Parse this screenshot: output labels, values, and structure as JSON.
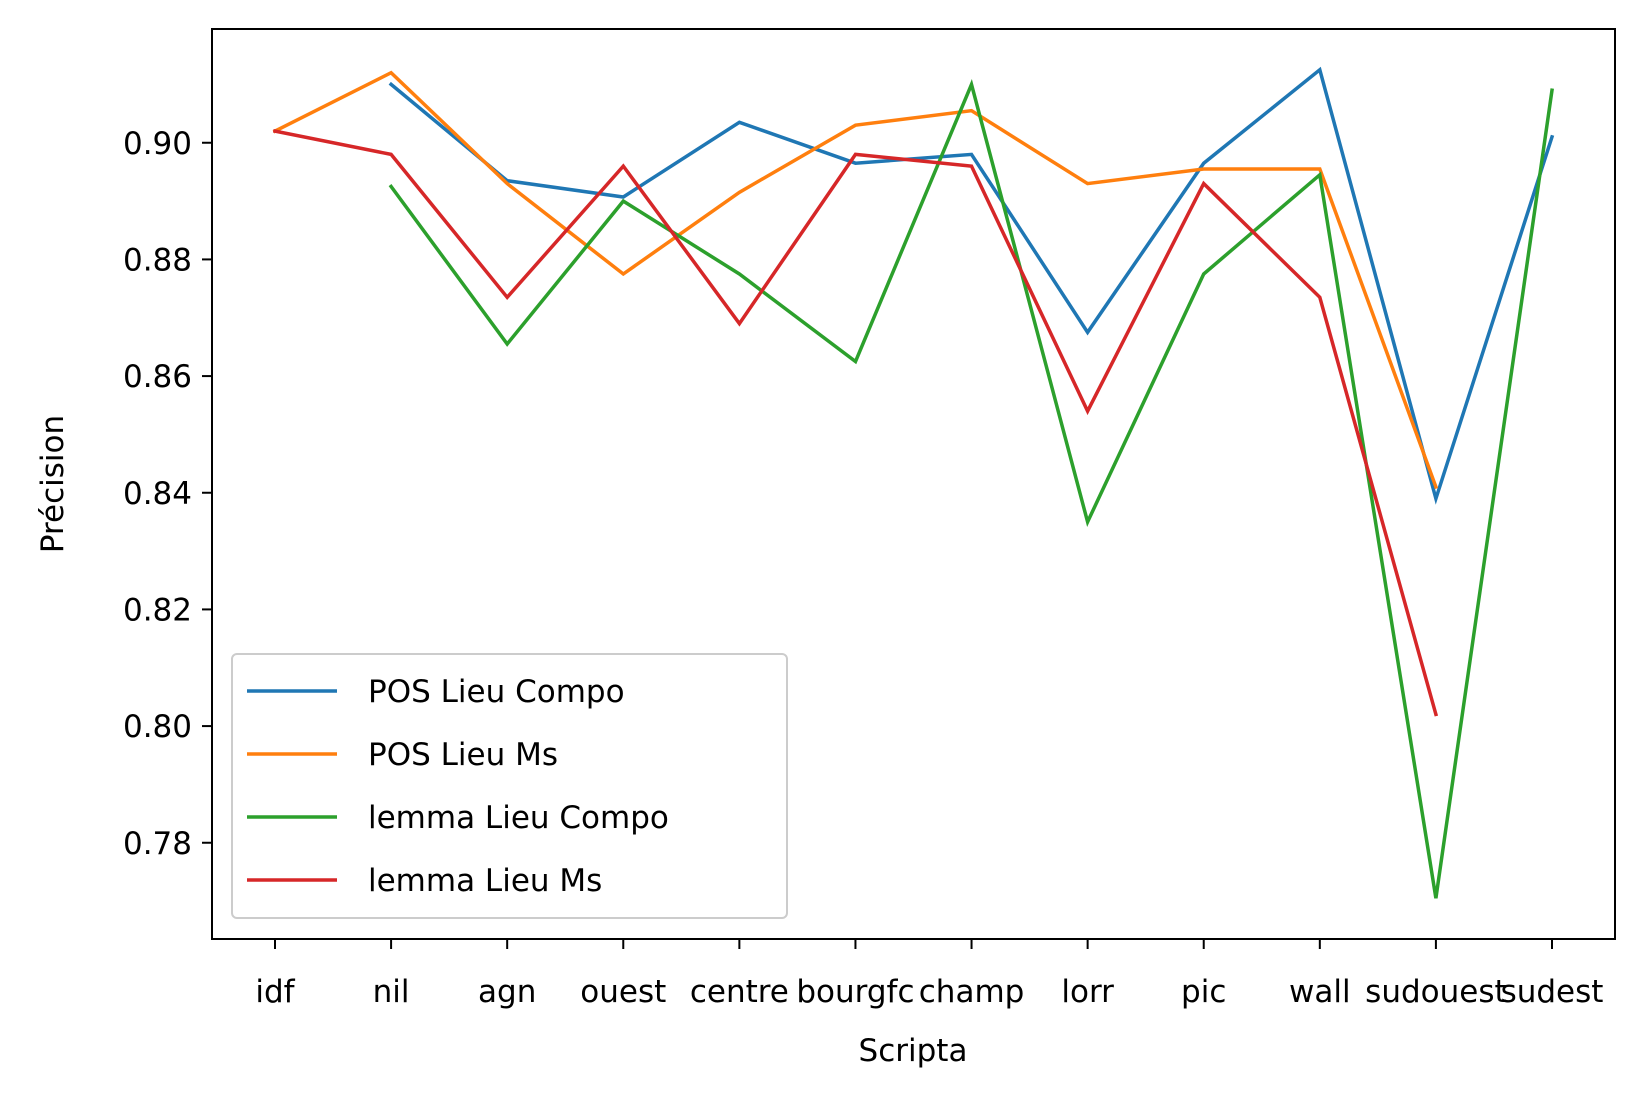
{
  "chart_data": {
    "type": "line",
    "title": "",
    "xlabel": "Scripta",
    "ylabel": "Précision",
    "categories": [
      "idf",
      "nil",
      "agn",
      "ouest",
      "centre",
      "bourgfc",
      "champ",
      "lorr",
      "pic",
      "wall",
      "sudouest",
      "sudest"
    ],
    "ylim": [
      0.7635,
      0.9195
    ],
    "yticks": [
      0.78,
      0.8,
      0.82,
      0.84,
      0.86,
      0.88,
      0.9
    ],
    "ytick_labels": [
      "0.78",
      "0.80",
      "0.82",
      "0.84",
      "0.86",
      "0.88",
      "0.90"
    ],
    "grid": false,
    "legend_position": "lower-left",
    "series": [
      {
        "name": "POS Lieu Compo",
        "color": "#1f77b4",
        "values": [
          null,
          0.91,
          0.8935,
          0.8907,
          0.9035,
          0.8965,
          0.898,
          0.8675,
          0.8965,
          0.9125,
          0.839,
          0.901
        ]
      },
      {
        "name": "POS Lieu Ms",
        "color": "#ff7f0e",
        "values": [
          0.902,
          0.912,
          0.893,
          0.8775,
          0.8915,
          0.903,
          0.9055,
          0.893,
          0.8955,
          0.8955,
          0.841,
          null
        ]
      },
      {
        "name": "lemma Lieu Compo",
        "color": "#2ca02c",
        "values": [
          null,
          0.8925,
          0.8655,
          0.89,
          0.8775,
          0.8625,
          0.91,
          0.835,
          0.8775,
          0.8945,
          0.7705,
          0.909
        ]
      },
      {
        "name": "lemma Lieu Ms",
        "color": "#d62728",
        "values": [
          0.902,
          0.898,
          0.8735,
          0.896,
          0.869,
          0.898,
          0.896,
          0.854,
          0.893,
          0.8735,
          0.802,
          null
        ]
      }
    ]
  }
}
